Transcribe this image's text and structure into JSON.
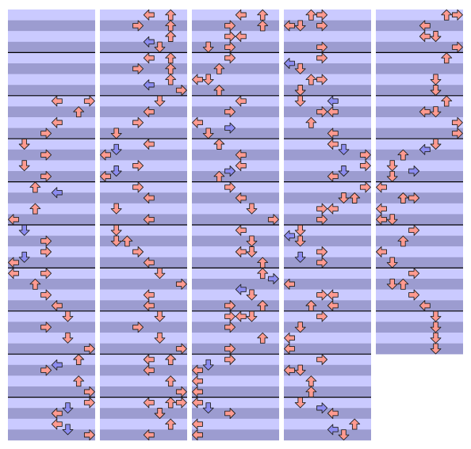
{
  "note_colors": {
    "r": "#ff9a90",
    "b": "#8c8cf0"
  },
  "columns": [
    {
      "measures": 10,
      "notes": [
        [
          16,
          4,
          "r"
        ],
        [
          16,
          7,
          "r"
        ],
        [
          18,
          6,
          "r"
        ],
        [
          20,
          4,
          "r"
        ],
        [
          22,
          3,
          "r"
        ],
        [
          24,
          1,
          "r"
        ],
        [
          26,
          3,
          "r"
        ],
        [
          28,
          1,
          "r"
        ],
        [
          30,
          3,
          "r"
        ],
        [
          32,
          2,
          "r"
        ],
        [
          33,
          4,
          "b"
        ],
        [
          36,
          2,
          "r"
        ],
        [
          38,
          0,
          "r"
        ],
        [
          40,
          1,
          "b"
        ],
        [
          42,
          3,
          "r"
        ],
        [
          44,
          3,
          "r"
        ],
        [
          45,
          1,
          "b"
        ],
        [
          46,
          0,
          "r"
        ],
        [
          48,
          0,
          "r"
        ],
        [
          48,
          3,
          "r"
        ],
        [
          50,
          2,
          "r"
        ],
        [
          52,
          3,
          "r"
        ],
        [
          54,
          4,
          "r"
        ],
        [
          56,
          5,
          "r"
        ],
        [
          58,
          3,
          "r"
        ],
        [
          60,
          5,
          "r"
        ],
        [
          62,
          7,
          "r"
        ],
        [
          64,
          6,
          "r"
        ],
        [
          65,
          4,
          "b"
        ],
        [
          66,
          3,
          "r"
        ],
        [
          68,
          6,
          "r"
        ],
        [
          70,
          7,
          "r"
        ],
        [
          72,
          7,
          "r"
        ],
        [
          73,
          5,
          "b"
        ],
        [
          74,
          4,
          "r"
        ],
        [
          76,
          4,
          "r"
        ],
        [
          77,
          5,
          "b"
        ],
        [
          78,
          7,
          "r"
        ]
      ]
    },
    {
      "measures": 10,
      "notes": [
        [
          0,
          4,
          "r"
        ],
        [
          0,
          6,
          "r"
        ],
        [
          2,
          3,
          "r"
        ],
        [
          2,
          6,
          "r"
        ],
        [
          4,
          6,
          "r"
        ],
        [
          5,
          4,
          "b"
        ],
        [
          6,
          5,
          "r"
        ],
        [
          8,
          4,
          "r"
        ],
        [
          8,
          6,
          "r"
        ],
        [
          10,
          3,
          "r"
        ],
        [
          10,
          6,
          "r"
        ],
        [
          12,
          6,
          "r"
        ],
        [
          13,
          4,
          "b"
        ],
        [
          14,
          7,
          "r"
        ],
        [
          16,
          5,
          "r"
        ],
        [
          18,
          4,
          "r"
        ],
        [
          20,
          3,
          "r"
        ],
        [
          22,
          1,
          "r"
        ],
        [
          24,
          4,
          "r"
        ],
        [
          25,
          1,
          "b"
        ],
        [
          26,
          0,
          "r"
        ],
        [
          28,
          3,
          "r"
        ],
        [
          29,
          1,
          "b"
        ],
        [
          30,
          0,
          "r"
        ],
        [
          32,
          3,
          "r"
        ],
        [
          34,
          4,
          "r"
        ],
        [
          36,
          1,
          "r"
        ],
        [
          38,
          4,
          "r"
        ],
        [
          40,
          1,
          "r"
        ],
        [
          42,
          1,
          "r"
        ],
        [
          42,
          2,
          "r"
        ],
        [
          44,
          3,
          "r"
        ],
        [
          46,
          4,
          "r"
        ],
        [
          48,
          5,
          "r"
        ],
        [
          50,
          7,
          "r"
        ],
        [
          52,
          4,
          "r"
        ],
        [
          54,
          4,
          "r"
        ],
        [
          56,
          5,
          "r"
        ],
        [
          58,
          3,
          "r"
        ],
        [
          60,
          5,
          "r"
        ],
        [
          62,
          7,
          "r"
        ],
        [
          64,
          4,
          "r"
        ],
        [
          64,
          6,
          "r"
        ],
        [
          66,
          4,
          "r"
        ],
        [
          68,
          6,
          "r"
        ],
        [
          70,
          7,
          "r"
        ],
        [
          72,
          4,
          "r"
        ],
        [
          72,
          6,
          "r"
        ],
        [
          72,
          7,
          "r"
        ],
        [
          74,
          5,
          "r"
        ],
        [
          76,
          6,
          "r"
        ],
        [
          78,
          4,
          "r"
        ]
      ]
    },
    {
      "measures": 10,
      "notes": [
        [
          0,
          4,
          "r"
        ],
        [
          0,
          6,
          "r"
        ],
        [
          2,
          3,
          "r"
        ],
        [
          2,
          6,
          "r"
        ],
        [
          4,
          3,
          "r"
        ],
        [
          4,
          4,
          "r"
        ],
        [
          6,
          1,
          "r"
        ],
        [
          6,
          3,
          "r"
        ],
        [
          8,
          3,
          "r"
        ],
        [
          10,
          2,
          "r"
        ],
        [
          12,
          0,
          "r"
        ],
        [
          12,
          1,
          "r"
        ],
        [
          14,
          2,
          "r"
        ],
        [
          16,
          4,
          "r"
        ],
        [
          18,
          3,
          "r"
        ],
        [
          20,
          0,
          "r"
        ],
        [
          21,
          3,
          "b"
        ],
        [
          22,
          1,
          "r"
        ],
        [
          24,
          2,
          "r"
        ],
        [
          26,
          4,
          "r"
        ],
        [
          28,
          4,
          "r"
        ],
        [
          29,
          3,
          "b"
        ],
        [
          30,
          2,
          "r"
        ],
        [
          32,
          3,
          "r"
        ],
        [
          34,
          4,
          "r"
        ],
        [
          36,
          5,
          "r"
        ],
        [
          38,
          7,
          "r"
        ],
        [
          40,
          4,
          "r"
        ],
        [
          42,
          5,
          "r"
        ],
        [
          44,
          4,
          "r"
        ],
        [
          44,
          5,
          "r"
        ],
        [
          46,
          6,
          "r"
        ],
        [
          48,
          6,
          "r"
        ],
        [
          49,
          7,
          "b"
        ],
        [
          51,
          4,
          "b"
        ],
        [
          52,
          5,
          "r"
        ],
        [
          54,
          3,
          "r"
        ],
        [
          54,
          6,
          "r"
        ],
        [
          56,
          3,
          "r"
        ],
        [
          56,
          4,
          "r"
        ],
        [
          56,
          5,
          "r"
        ],
        [
          58,
          3,
          "r"
        ],
        [
          60,
          6,
          "r"
        ],
        [
          62,
          3,
          "r"
        ],
        [
          64,
          3,
          "r"
        ],
        [
          65,
          1,
          "b"
        ],
        [
          66,
          0,
          "r"
        ],
        [
          68,
          0,
          "r"
        ],
        [
          70,
          0,
          "r"
        ],
        [
          72,
          0,
          "r"
        ],
        [
          73,
          1,
          "b"
        ],
        [
          74,
          3,
          "r"
        ],
        [
          76,
          0,
          "r"
        ],
        [
          78,
          0,
          "r"
        ]
      ]
    },
    {
      "measures": 10,
      "notes": [
        [
          0,
          2,
          "r"
        ],
        [
          0,
          3,
          "r"
        ],
        [
          2,
          0,
          "r"
        ],
        [
          2,
          1,
          "r"
        ],
        [
          2,
          3,
          "r"
        ],
        [
          6,
          3,
          "r"
        ],
        [
          8,
          3,
          "r"
        ],
        [
          9,
          0,
          "b"
        ],
        [
          10,
          1,
          "r"
        ],
        [
          12,
          2,
          "r"
        ],
        [
          12,
          3,
          "r"
        ],
        [
          14,
          1,
          "r"
        ],
        [
          16,
          1,
          "r"
        ],
        [
          16,
          4,
          "b"
        ],
        [
          18,
          3,
          "r"
        ],
        [
          18,
          4,
          "r"
        ],
        [
          20,
          2,
          "r"
        ],
        [
          22,
          4,
          "r"
        ],
        [
          24,
          4,
          "r"
        ],
        [
          25,
          5,
          "b"
        ],
        [
          26,
          7,
          "r"
        ],
        [
          28,
          7,
          "r"
        ],
        [
          29,
          5,
          "b"
        ],
        [
          30,
          4,
          "r"
        ],
        [
          32,
          7,
          "r"
        ],
        [
          34,
          5,
          "r"
        ],
        [
          34,
          6,
          "r"
        ],
        [
          36,
          3,
          "r"
        ],
        [
          36,
          4,
          "r"
        ],
        [
          38,
          3,
          "r"
        ],
        [
          40,
          1,
          "r"
        ],
        [
          41,
          0,
          "b"
        ],
        [
          42,
          1,
          "r"
        ],
        [
          44,
          3,
          "r"
        ],
        [
          45,
          1,
          "b"
        ],
        [
          46,
          3,
          "r"
        ],
        [
          50,
          0,
          "r"
        ],
        [
          52,
          3,
          "r"
        ],
        [
          52,
          4,
          "r"
        ],
        [
          54,
          2,
          "r"
        ],
        [
          54,
          4,
          "r"
        ],
        [
          56,
          3,
          "r"
        ],
        [
          58,
          1,
          "r"
        ],
        [
          60,
          0,
          "r"
        ],
        [
          62,
          0,
          "r"
        ],
        [
          64,
          3,
          "r"
        ],
        [
          66,
          0,
          "r"
        ],
        [
          66,
          1,
          "r"
        ],
        [
          68,
          2,
          "r"
        ],
        [
          70,
          2,
          "r"
        ],
        [
          72,
          1,
          "r"
        ],
        [
          73,
          3,
          "b"
        ],
        [
          74,
          4,
          "r"
        ],
        [
          77,
          4,
          "b"
        ],
        [
          76,
          6,
          "r"
        ],
        [
          78,
          5,
          "r"
        ]
      ]
    },
    {
      "measures": 8,
      "notes": [
        [
          0,
          6,
          "r"
        ],
        [
          0,
          7,
          "r"
        ],
        [
          2,
          4,
          "r"
        ],
        [
          4,
          4,
          "r"
        ],
        [
          4,
          5,
          "r"
        ],
        [
          6,
          7,
          "r"
        ],
        [
          8,
          6,
          "r"
        ],
        [
          12,
          5,
          "r"
        ],
        [
          14,
          5,
          "r"
        ],
        [
          16,
          6,
          "r"
        ],
        [
          18,
          4,
          "r"
        ],
        [
          18,
          5,
          "r"
        ],
        [
          20,
          7,
          "r"
        ],
        [
          22,
          7,
          "r"
        ],
        [
          24,
          5,
          "r"
        ],
        [
          25,
          4,
          "b"
        ],
        [
          26,
          2,
          "r"
        ],
        [
          28,
          1,
          "r"
        ],
        [
          29,
          3,
          "b"
        ],
        [
          30,
          1,
          "r"
        ],
        [
          32,
          0,
          "r"
        ],
        [
          34,
          2,
          "r"
        ],
        [
          34,
          3,
          "r"
        ],
        [
          36,
          0,
          "r"
        ],
        [
          38,
          0,
          "r"
        ],
        [
          38,
          1,
          "r"
        ],
        [
          40,
          3,
          "r"
        ],
        [
          42,
          2,
          "r"
        ],
        [
          44,
          0,
          "r"
        ],
        [
          46,
          1,
          "r"
        ],
        [
          48,
          3,
          "r"
        ],
        [
          50,
          1,
          "r"
        ],
        [
          50,
          2,
          "r"
        ],
        [
          52,
          3,
          "r"
        ],
        [
          54,
          4,
          "r"
        ],
        [
          56,
          5,
          "r"
        ],
        [
          58,
          5,
          "r"
        ],
        [
          60,
          5,
          "r"
        ],
        [
          62,
          5,
          "r"
        ]
      ]
    }
  ]
}
